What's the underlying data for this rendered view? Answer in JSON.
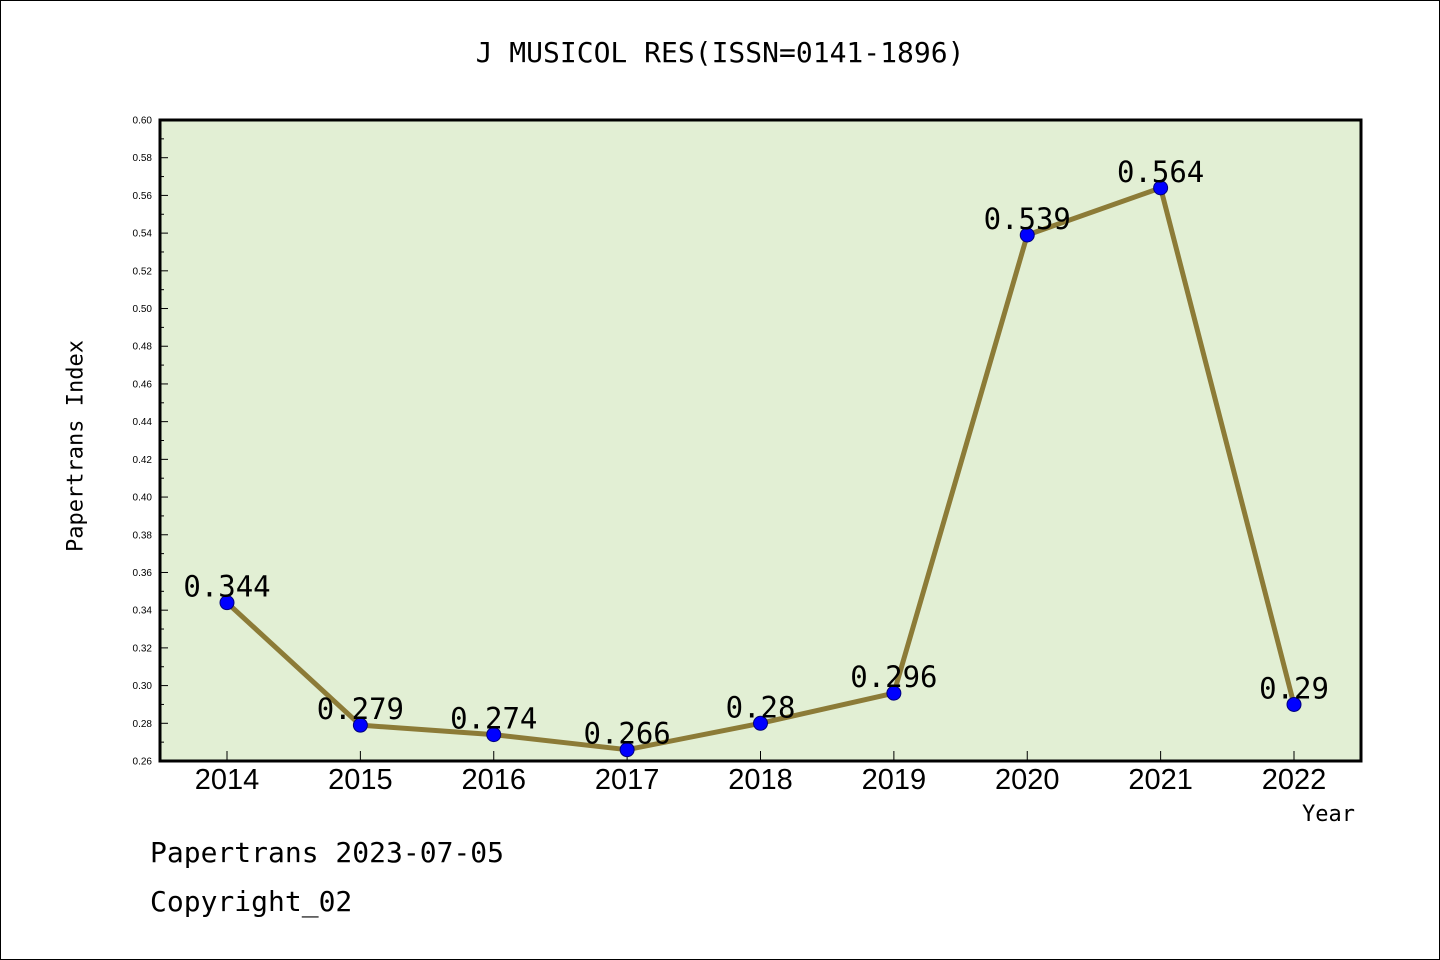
{
  "chart_data": {
    "type": "line",
    "title": "J MUSICOL RES(ISSN=0141-1896)",
    "xlabel": "Year",
    "ylabel": "Papertrans Index",
    "categories": [
      "2014",
      "2015",
      "2016",
      "2017",
      "2018",
      "2019",
      "2020",
      "2021",
      "2022"
    ],
    "values": [
      0.344,
      0.279,
      0.274,
      0.266,
      0.28,
      0.296,
      0.539,
      0.564,
      0.29
    ],
    "data_labels": [
      "0.344",
      "0.279",
      "0.274",
      "0.266",
      "0.28",
      "0.296",
      "0.539",
      "0.564",
      "0.29"
    ],
    "ylim": [
      0.26,
      0.6
    ],
    "yticks": [
      "0.26",
      "0.28",
      "0.30",
      "0.32",
      "0.34",
      "0.36",
      "0.38",
      "0.40",
      "0.42",
      "0.44",
      "0.46",
      "0.48",
      "0.50",
      "0.52",
      "0.54",
      "0.56",
      "0.58",
      "0.60"
    ],
    "grid": false,
    "colors": {
      "plot_background": "#e2efd4",
      "line": "#8c7b37",
      "marker": "#0000ff"
    }
  },
  "footer": {
    "line1": "Papertrans 2023-07-05",
    "line2": "Copyright_02"
  }
}
